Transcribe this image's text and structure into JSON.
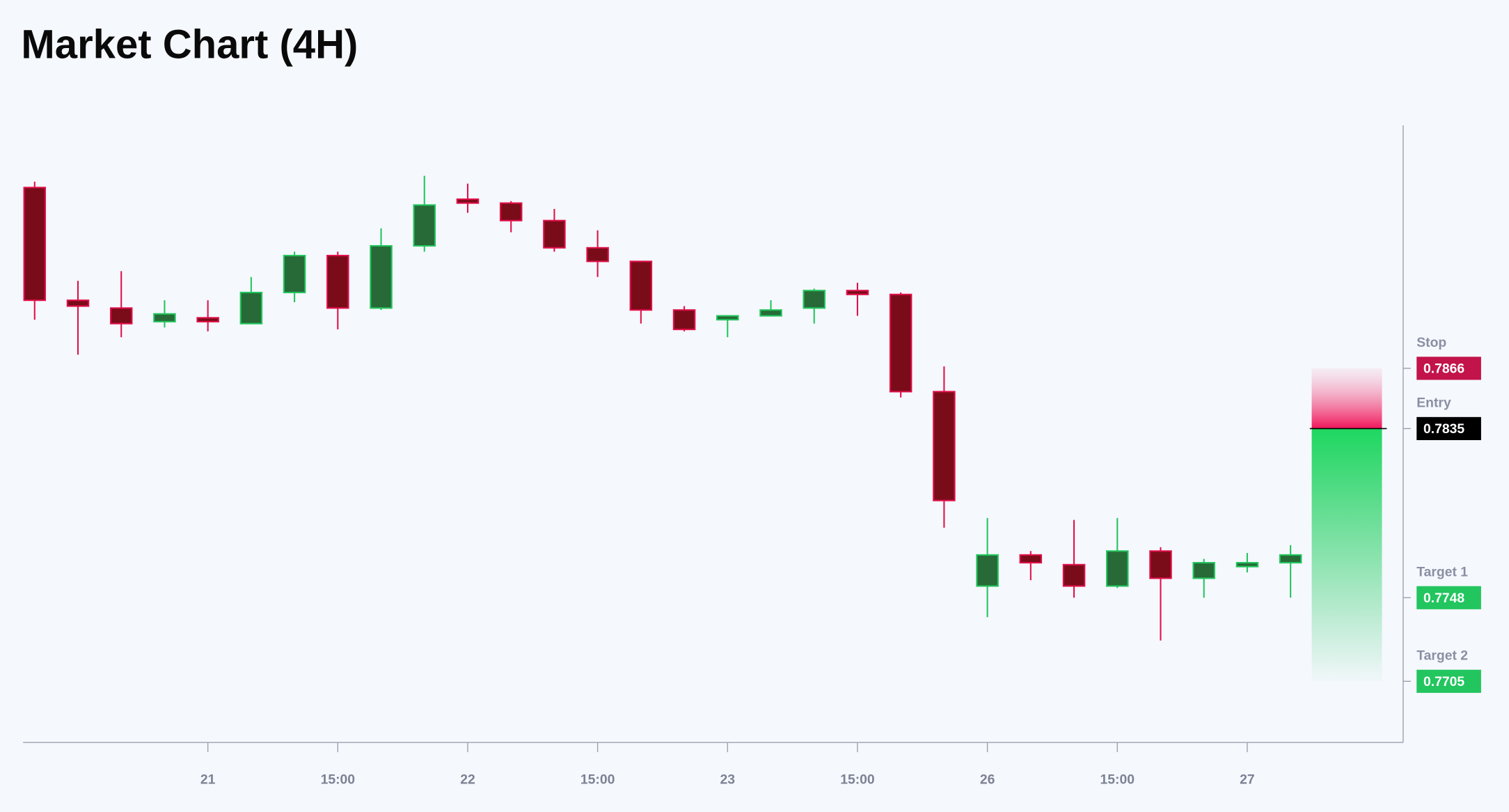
{
  "chart_data": {
    "type": "candlestick",
    "title": "Market Chart (4H)",
    "categories": [
      null,
      null,
      null,
      null,
      "21",
      null,
      null,
      "15:00",
      null,
      null,
      "22",
      null,
      null,
      "15:00",
      null,
      null,
      "23",
      null,
      null,
      "15:00",
      null,
      null,
      "26",
      null,
      null,
      "15:00",
      null,
      null,
      "27",
      null
    ],
    "open": [
      0.7959,
      0.7901,
      0.7897,
      0.789,
      0.7892,
      0.7889,
      0.7905,
      0.7924,
      0.7897,
      0.7929,
      0.7953,
      0.7951,
      0.7942,
      0.7928,
      0.7921,
      0.7896,
      0.7891,
      0.7893,
      0.7897,
      0.7906,
      0.7904,
      0.7854,
      0.7754,
      0.777,
      0.7765,
      0.7754,
      0.7772,
      0.7758,
      0.7764,
      0.7766
    ],
    "high": [
      0.7962,
      0.7911,
      0.7916,
      0.7901,
      0.7901,
      0.7913,
      0.7926,
      0.7926,
      0.7938,
      0.7965,
      0.7961,
      0.7952,
      0.7948,
      0.7937,
      0.7921,
      0.7898,
      0.7893,
      0.7901,
      0.7907,
      0.791,
      0.7905,
      0.7867,
      0.7789,
      0.7772,
      0.7788,
      0.7789,
      0.7774,
      0.7768,
      0.7771,
      0.7775
    ],
    "low": [
      0.7891,
      0.7873,
      0.7882,
      0.7887,
      0.7885,
      0.7889,
      0.79,
      0.7886,
      0.7896,
      0.7926,
      0.7946,
      0.7936,
      0.7926,
      0.7913,
      0.7889,
      0.7885,
      0.7882,
      0.7893,
      0.7889,
      0.7893,
      0.7851,
      0.7784,
      0.7738,
      0.7757,
      0.7748,
      0.7753,
      0.7726,
      0.7748,
      0.7761,
      0.7748
    ],
    "close": [
      0.7901,
      0.7898,
      0.7889,
      0.7894,
      0.789,
      0.7905,
      0.7924,
      0.7897,
      0.7929,
      0.795,
      0.7951,
      0.7942,
      0.7928,
      0.7921,
      0.7896,
      0.7886,
      0.7893,
      0.7896,
      0.7906,
      0.7904,
      0.7854,
      0.7798,
      0.777,
      0.7766,
      0.7754,
      0.7772,
      0.7758,
      0.7766,
      0.7766,
      0.777
    ],
    "up_color": "#276a37",
    "up_border": "#22c55e",
    "down_color": "#7a0c1a",
    "down_border": "#e0104a",
    "ylim": [
      0.7674,
      0.7991
    ],
    "levels": [
      {
        "name": "Stop",
        "value": 0.7866,
        "color": "#c2134a"
      },
      {
        "name": "Entry",
        "value": 0.7835,
        "color": "#000000"
      },
      {
        "name": "Target 1",
        "value": 0.7748,
        "color": "#22c55e"
      },
      {
        "name": "Target 2",
        "value": 0.7705,
        "color": "#22c55e"
      }
    ]
  }
}
